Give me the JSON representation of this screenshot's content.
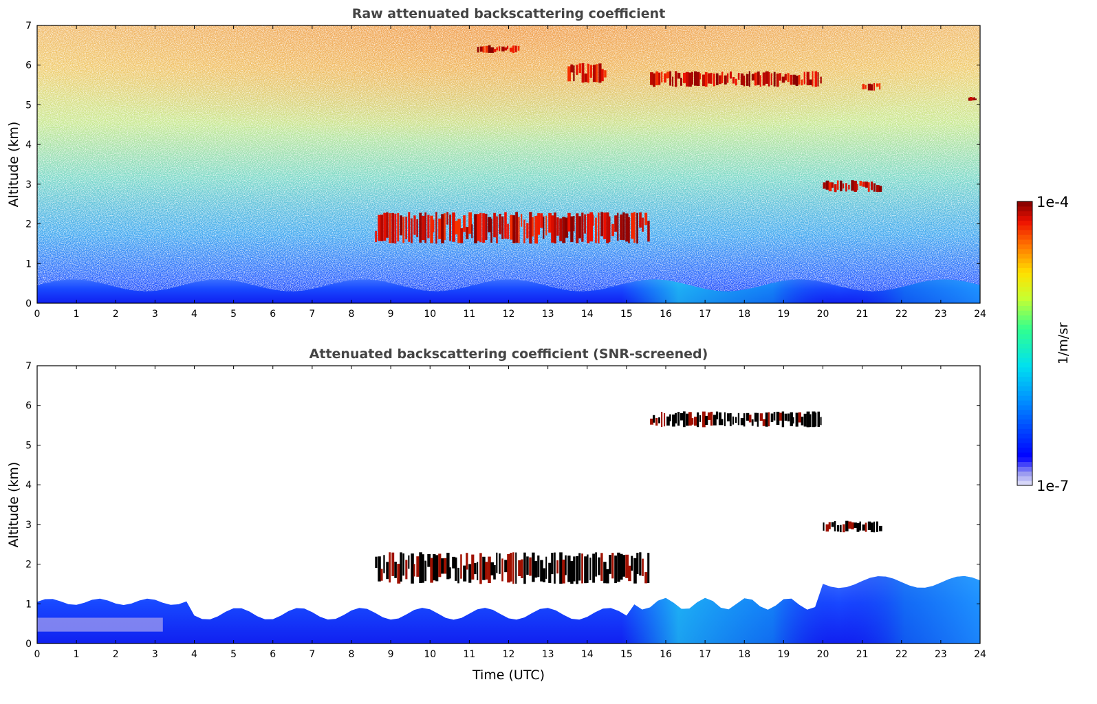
{
  "chart_data": [
    {
      "type": "heatmap",
      "title": "Raw attenuated backscattering coefficient",
      "xlabel": "",
      "ylabel": "Altitude (km)",
      "xlim": [
        0,
        24
      ],
      "ylim": [
        0,
        7
      ],
      "xticks": [
        "0",
        "1",
        "2",
        "3",
        "4",
        "5",
        "6",
        "7",
        "8",
        "9",
        "10",
        "11",
        "12",
        "13",
        "14",
        "15",
        "16",
        "17",
        "18",
        "19",
        "20",
        "21",
        "22",
        "23",
        "24"
      ],
      "yticks": [
        "0",
        "1",
        "2",
        "3",
        "4",
        "5",
        "6",
        "7"
      ],
      "screened": false,
      "features": [
        {
          "kind": "boundary-layer",
          "x": [
            0,
            24
          ],
          "top_km": 0.6,
          "level": 0.25
        },
        {
          "kind": "aerosol-cloud-layer",
          "x": [
            8.6,
            15.6
          ],
          "y": [
            1.5,
            2.3
          ],
          "level": 1.0
        },
        {
          "kind": "cirrus-cloud",
          "x": [
            15.6,
            20.0
          ],
          "y": [
            5.45,
            5.85
          ],
          "level": 1.0
        },
        {
          "kind": "cloud",
          "x": [
            20.0,
            21.5
          ],
          "y": [
            2.8,
            3.1
          ],
          "level": 1.0
        },
        {
          "kind": "cloud",
          "x": [
            11.2,
            12.3
          ],
          "y": [
            6.3,
            6.5
          ],
          "level": 1.0
        },
        {
          "kind": "cloud",
          "x": [
            13.5,
            14.5
          ],
          "y": [
            5.55,
            6.05
          ],
          "level": 1.0
        },
        {
          "kind": "cloud",
          "x": [
            21.0,
            21.5
          ],
          "y": [
            5.35,
            5.55
          ],
          "level": 1.0
        },
        {
          "kind": "cloud",
          "x": [
            23.7,
            23.9
          ],
          "y": [
            5.1,
            5.2
          ],
          "level": 1.0
        }
      ]
    },
    {
      "type": "heatmap",
      "title": "Attenuated backscattering coefficient (SNR-screened)",
      "xlabel": "Time (UTC)",
      "ylabel": "Altitude (km)",
      "xlim": [
        0,
        24
      ],
      "ylim": [
        0,
        7
      ],
      "xticks": [
        "0",
        "1",
        "2",
        "3",
        "4",
        "5",
        "6",
        "7",
        "8",
        "9",
        "10",
        "11",
        "12",
        "13",
        "14",
        "15",
        "16",
        "17",
        "18",
        "19",
        "20",
        "21",
        "22",
        "23",
        "24"
      ],
      "yticks": [
        "0",
        "1",
        "2",
        "3",
        "4",
        "5",
        "6",
        "7"
      ],
      "screened": true,
      "features": [
        {
          "kind": "boundary-layer",
          "x": [
            0,
            24
          ],
          "top_km": 1.0,
          "level": 0.25
        },
        {
          "kind": "aerosol-cloud-layer",
          "x": [
            8.6,
            15.6
          ],
          "y": [
            1.5,
            2.3
          ],
          "level": 1.0
        },
        {
          "kind": "cirrus-cloud",
          "x": [
            15.6,
            20.0
          ],
          "y": [
            5.45,
            5.85
          ],
          "level": 1.0
        },
        {
          "kind": "cloud",
          "x": [
            20.0,
            21.5
          ],
          "y": [
            2.8,
            3.1
          ],
          "level": 1.0
        }
      ]
    }
  ],
  "colorbar": {
    "label": "1/m/sr",
    "max_label": "1e-4",
    "min_label": "1e-7",
    "colormap": "jet",
    "scale": "log"
  }
}
